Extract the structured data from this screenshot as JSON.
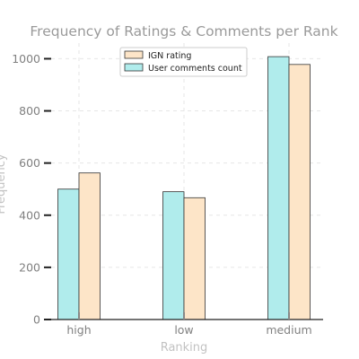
{
  "chart_data": {
    "type": "bar",
    "title": "Frequency of Ratings & Comments per Rank",
    "xlabel": "Ranking",
    "ylabel": "Frequency",
    "categories": [
      "high",
      "low",
      "medium"
    ],
    "series": [
      {
        "name": "User comments count",
        "values": [
          500,
          490,
          1008
        ],
        "color": "#b0ecec"
      },
      {
        "name": "IGN rating",
        "values": [
          562,
          467,
          978
        ],
        "color": "#fde5c8"
      }
    ],
    "ylim": [
      0,
      1060
    ],
    "yticks": [
      0,
      200,
      400,
      600,
      800,
      1000
    ],
    "legend": {
      "position": "top-center",
      "order": [
        "IGN rating",
        "User comments count"
      ]
    },
    "grid": true,
    "grid_color": "#e6e6e6",
    "bar_edge_color": "#333333"
  }
}
